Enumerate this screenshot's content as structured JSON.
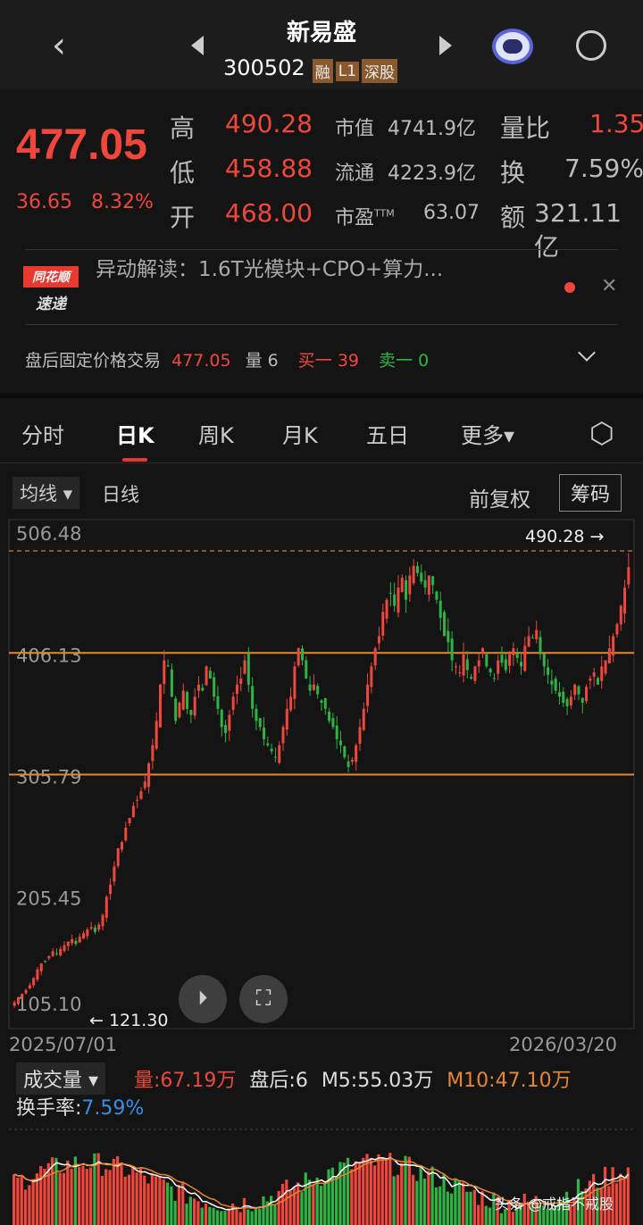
{
  "header": {
    "name": "新易盛",
    "code": "300502",
    "badges": [
      "融",
      "L1",
      "深股"
    ]
  },
  "quote": {
    "price": "477.05",
    "change": "36.65",
    "change_pct": "8.32%",
    "rows": [
      {
        "l1": "高",
        "v1": "490.28",
        "l2": "市值",
        "v2": "4741.9亿",
        "l3": "量比",
        "v3": "1.35"
      },
      {
        "l1": "低",
        "v1": "458.88",
        "l2": "流通",
        "v2": "4223.9亿",
        "l3": "换",
        "v3": "7.59%"
      },
      {
        "l1": "开",
        "v1": "468.00",
        "l2": "市盈",
        "l2sup": "TTM",
        "v2": "63.07",
        "l3": "额",
        "v3": "321.11亿"
      }
    ]
  },
  "news": {
    "logo_top": "同花顺",
    "logo_bottom": "速递",
    "text": "异动解读：1.6T光模块+CPO+算力..."
  },
  "after_hours": {
    "label": "盘后固定价格交易",
    "price": "477.05",
    "vol_label": "量 6",
    "buy": "买一 39",
    "sell": "卖一 0"
  },
  "tabs": [
    "分时",
    "日K",
    "周K",
    "月K",
    "五日",
    "更多▾"
  ],
  "active_tab": 1,
  "toolbar": {
    "ma": "均线",
    "period": "日线",
    "adjust": "前复权",
    "chips": "筹码"
  },
  "colors": {
    "up": "#f0473c",
    "down": "#2fb344",
    "ma": "#e8862e"
  },
  "chart_data": {
    "type": "candlestick",
    "y_ticks": [
      "506.48",
      "406.13",
      "305.79",
      "205.45",
      "105.10"
    ],
    "ylim": [
      105.1,
      506.48
    ],
    "high_label": "490.28",
    "low_label": "121.30",
    "x_start": "2025/07/01",
    "x_end": "2026/03/20",
    "ma_lines": [
      406.13,
      305.79
    ],
    "closes": [
      118,
      122,
      125,
      128,
      132,
      138,
      145,
      150,
      152,
      156,
      160,
      158,
      162,
      165,
      168,
      170,
      166,
      172,
      175,
      178,
      180,
      176,
      182,
      190,
      205,
      215,
      230,
      245,
      250,
      262,
      270,
      280,
      285,
      292,
      300,
      315,
      330,
      350,
      380,
      400,
      395,
      370,
      350,
      365,
      375,
      360,
      355,
      370,
      380,
      375,
      395,
      385,
      370,
      360,
      345,
      340,
      355,
      370,
      380,
      385,
      400,
      380,
      360,
      350,
      345,
      335,
      330,
      325,
      320,
      330,
      345,
      360,
      370,
      395,
      410,
      400,
      385,
      375,
      380,
      372,
      365,
      360,
      350,
      345,
      335,
      330,
      320,
      312,
      318,
      330,
      345,
      360,
      380,
      395,
      410,
      420,
      440,
      450,
      455,
      445,
      460,
      468,
      450,
      470,
      478,
      472,
      465,
      460,
      470,
      462,
      450,
      435,
      420,
      415,
      400,
      395,
      390,
      405,
      392,
      385,
      395,
      400,
      410,
      395,
      390,
      385,
      400,
      398,
      392,
      405,
      410,
      402,
      395,
      412,
      420,
      418,
      425,
      405,
      395,
      388,
      380,
      375,
      370,
      365,
      362,
      370,
      380,
      372,
      365,
      378,
      385,
      390,
      380,
      395,
      400,
      410,
      420,
      430,
      445,
      460,
      477
    ]
  },
  "volume": {
    "label": "成交量",
    "vol": "量:67.19万",
    "after": "盘后:6",
    "m5": "M5:55.03万",
    "m10": "M10:47.10万",
    "turnover_label": "换手率:",
    "turnover": "7.59%"
  },
  "watermark": "头条 @戒指不戒股"
}
